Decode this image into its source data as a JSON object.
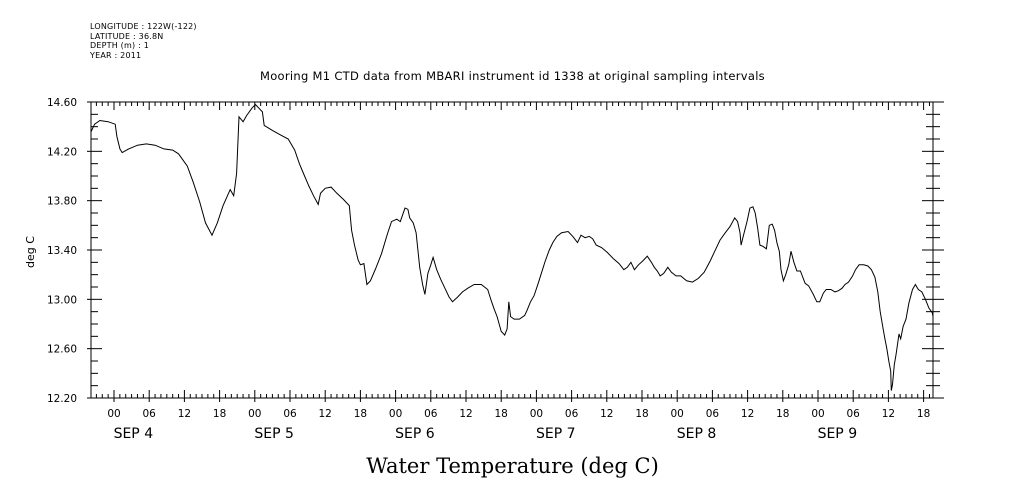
{
  "meta": {
    "longitude": "LONGITUDE : 122W(-122)",
    "latitude": "LATITUDE : 36.8N",
    "depth": "DEPTH (m) : 1",
    "year": "YEAR : 2011"
  },
  "chart_data": {
    "type": "line",
    "title": "Mooring M1 CTD data from MBARI instrument id 1338 at original sampling intervals",
    "footer_title": "Water Temperature (deg C)",
    "ylabel": "deg C",
    "xlabel": "",
    "ylim": [
      12.2,
      14.6
    ],
    "yticks": [
      "12.20",
      "12.60",
      "13.00",
      "13.40",
      "13.80",
      "14.20",
      "14.60"
    ],
    "xlim_hours": [
      -3,
      19.5
    ],
    "x_start_day_hour": [
      "SEP 4",
      "-03"
    ],
    "hour_ticks": [
      "00",
      "06",
      "12",
      "18",
      "00",
      "06",
      "12",
      "18",
      "00",
      "06",
      "12",
      "18",
      "00",
      "06",
      "12",
      "18",
      "00",
      "06",
      "12",
      "18",
      "00",
      "06",
      "12",
      "18"
    ],
    "day_labels": [
      "SEP  4",
      "SEP  5",
      "SEP  6",
      "SEP  7",
      "SEP  8",
      "SEP  9"
    ],
    "grid": false,
    "series": [
      {
        "color": "#000000",
        "x_unit": "hours since SEP 4 00:00",
        "points": [
          [
            -3.9,
            14.36
          ],
          [
            -3.3,
            14.42
          ],
          [
            -2.4,
            14.45
          ],
          [
            -1.0,
            14.44
          ],
          [
            0.2,
            14.42
          ],
          [
            0.5,
            14.32
          ],
          [
            1.0,
            14.22
          ],
          [
            1.4,
            14.19
          ],
          [
            2.5,
            14.22
          ],
          [
            4.0,
            14.25
          ],
          [
            5.5,
            14.26
          ],
          [
            7.0,
            14.25
          ],
          [
            8.5,
            14.22
          ],
          [
            10.0,
            14.21
          ],
          [
            11.0,
            14.18
          ],
          [
            12.5,
            14.08
          ],
          [
            13.5,
            13.95
          ],
          [
            14.6,
            13.79
          ],
          [
            15.6,
            13.62
          ],
          [
            16.7,
            13.52
          ],
          [
            17.6,
            13.62
          ],
          [
            18.6,
            13.76
          ],
          [
            19.8,
            13.89
          ],
          [
            20.4,
            13.84
          ],
          [
            20.9,
            14.02
          ],
          [
            21.3,
            14.48
          ],
          [
            22.0,
            14.44
          ],
          [
            22.6,
            14.49
          ],
          [
            23.5,
            14.55
          ],
          [
            24.1,
            14.58
          ],
          [
            24.7,
            14.55
          ],
          [
            25.3,
            14.52
          ],
          [
            25.6,
            14.41
          ],
          [
            27.0,
            14.37
          ],
          [
            28.5,
            14.33
          ],
          [
            29.7,
            14.3
          ],
          [
            30.8,
            14.21
          ],
          [
            31.6,
            14.1
          ],
          [
            32.3,
            14.02
          ],
          [
            33.2,
            13.92
          ],
          [
            34.0,
            13.84
          ],
          [
            34.8,
            13.77
          ],
          [
            35.2,
            13.86
          ],
          [
            36.0,
            13.9
          ],
          [
            37.0,
            13.91
          ],
          [
            38.0,
            13.86
          ],
          [
            39.1,
            13.81
          ],
          [
            40.1,
            13.76
          ],
          [
            40.5,
            13.56
          ],
          [
            41.0,
            13.44
          ],
          [
            41.6,
            13.32
          ],
          [
            42.0,
            13.28
          ],
          [
            42.6,
            13.29
          ],
          [
            43.1,
            13.12
          ],
          [
            43.7,
            13.15
          ],
          [
            44.6,
            13.25
          ],
          [
            45.6,
            13.37
          ],
          [
            46.6,
            13.53
          ],
          [
            47.3,
            13.63
          ],
          [
            48.2,
            13.65
          ],
          [
            48.8,
            13.63
          ],
          [
            49.6,
            13.74
          ],
          [
            50.1,
            13.73
          ],
          [
            50.4,
            13.66
          ],
          [
            51.0,
            13.62
          ],
          [
            51.5,
            13.54
          ],
          [
            52.1,
            13.26
          ],
          [
            52.6,
            13.12
          ],
          [
            53.0,
            13.04
          ],
          [
            53.5,
            13.21
          ],
          [
            54.0,
            13.28
          ],
          [
            54.4,
            13.34
          ],
          [
            55.0,
            13.24
          ],
          [
            55.7,
            13.16
          ],
          [
            56.4,
            13.09
          ],
          [
            57.1,
            13.02
          ],
          [
            57.7,
            12.98
          ],
          [
            58.6,
            13.02
          ],
          [
            59.4,
            13.06
          ],
          [
            60.3,
            13.09
          ],
          [
            61.4,
            13.12
          ],
          [
            62.6,
            13.12
          ],
          [
            63.7,
            13.08
          ],
          [
            64.3,
            12.99
          ],
          [
            64.8,
            12.92
          ],
          [
            65.3,
            12.86
          ],
          [
            66.0,
            12.74
          ],
          [
            66.6,
            12.71
          ],
          [
            67.0,
            12.76
          ],
          [
            67.3,
            12.98
          ],
          [
            67.6,
            12.86
          ],
          [
            68.2,
            12.84
          ],
          [
            69.1,
            12.84
          ],
          [
            70.0,
            12.87
          ],
          [
            70.4,
            12.91
          ],
          [
            71.0,
            12.98
          ],
          [
            71.6,
            13.03
          ],
          [
            72.3,
            13.13
          ],
          [
            72.9,
            13.22
          ],
          [
            73.5,
            13.31
          ],
          [
            74.2,
            13.4
          ],
          [
            74.8,
            13.46
          ],
          [
            75.5,
            13.51
          ],
          [
            76.3,
            13.54
          ],
          [
            77.4,
            13.55
          ],
          [
            78.2,
            13.51
          ],
          [
            79.0,
            13.46
          ],
          [
            79.6,
            13.52
          ],
          [
            80.3,
            13.5
          ],
          [
            81.0,
            13.51
          ],
          [
            81.6,
            13.49
          ],
          [
            82.2,
            13.44
          ],
          [
            83.1,
            13.42
          ],
          [
            84.1,
            13.38
          ],
          [
            85.1,
            13.33
          ],
          [
            86.1,
            13.29
          ],
          [
            86.9,
            13.24
          ],
          [
            87.5,
            13.26
          ],
          [
            88.1,
            13.3
          ],
          [
            88.7,
            13.24
          ],
          [
            89.4,
            13.28
          ],
          [
            90.1,
            13.31
          ],
          [
            90.9,
            13.35
          ],
          [
            91.6,
            13.3
          ],
          [
            92.1,
            13.26
          ],
          [
            92.6,
            13.23
          ],
          [
            93.1,
            13.19
          ],
          [
            93.7,
            13.21
          ],
          [
            94.4,
            13.26
          ],
          [
            95.0,
            13.22
          ],
          [
            95.8,
            13.19
          ],
          [
            96.6,
            13.19
          ],
          [
            97.6,
            13.15
          ],
          [
            98.6,
            13.14
          ],
          [
            99.6,
            13.17
          ],
          [
            100.6,
            13.22
          ],
          [
            101.6,
            13.31
          ],
          [
            102.6,
            13.41
          ],
          [
            103.3,
            13.48
          ],
          [
            104.2,
            13.54
          ],
          [
            105.0,
            13.59
          ],
          [
            105.8,
            13.66
          ],
          [
            106.3,
            13.63
          ],
          [
            106.7,
            13.54
          ],
          [
            106.9,
            13.44
          ],
          [
            107.3,
            13.52
          ],
          [
            107.9,
            13.63
          ],
          [
            108.4,
            13.74
          ],
          [
            108.9,
            13.75
          ],
          [
            109.3,
            13.7
          ],
          [
            109.7,
            13.58
          ],
          [
            110.1,
            13.44
          ],
          [
            110.6,
            13.43
          ],
          [
            111.2,
            13.41
          ],
          [
            111.7,
            13.6
          ],
          [
            112.2,
            13.61
          ],
          [
            112.6,
            13.56
          ],
          [
            113.0,
            13.46
          ],
          [
            113.4,
            13.39
          ],
          [
            113.7,
            13.24
          ],
          [
            114.1,
            13.15
          ],
          [
            114.5,
            13.2
          ],
          [
            115.0,
            13.28
          ],
          [
            115.4,
            13.39
          ],
          [
            115.9,
            13.3
          ],
          [
            116.4,
            13.23
          ],
          [
            117.0,
            13.23
          ],
          [
            117.8,
            13.13
          ],
          [
            118.4,
            13.11
          ],
          [
            119.2,
            13.04
          ],
          [
            119.8,
            12.98
          ],
          [
            120.3,
            12.98
          ],
          [
            120.9,
            13.05
          ],
          [
            121.4,
            13.08
          ],
          [
            122.2,
            13.08
          ],
          [
            122.9,
            13.06
          ],
          [
            123.5,
            13.07
          ],
          [
            124.1,
            13.09
          ],
          [
            124.6,
            13.12
          ],
          [
            125.2,
            13.14
          ],
          [
            125.9,
            13.19
          ],
          [
            126.4,
            13.24
          ],
          [
            127.0,
            13.28
          ],
          [
            127.8,
            13.28
          ],
          [
            128.5,
            13.27
          ],
          [
            129.1,
            13.24
          ],
          [
            129.7,
            13.18
          ],
          [
            130.2,
            13.06
          ],
          [
            130.6,
            12.9
          ],
          [
            131.0,
            12.79
          ],
          [
            131.4,
            12.68
          ],
          [
            131.7,
            12.61
          ],
          [
            132.1,
            12.49
          ],
          [
            132.4,
            12.42
          ],
          [
            132.5,
            12.26
          ],
          [
            132.7,
            12.31
          ],
          [
            133.0,
            12.47
          ],
          [
            133.3,
            12.55
          ],
          [
            133.8,
            12.72
          ],
          [
            134.1,
            12.68
          ],
          [
            134.5,
            12.78
          ],
          [
            135.0,
            12.84
          ],
          [
            135.5,
            12.97
          ],
          [
            136.1,
            13.08
          ],
          [
            136.6,
            13.12
          ],
          [
            137.1,
            13.08
          ],
          [
            137.7,
            13.06
          ],
          [
            138.3,
            13.0
          ],
          [
            138.9,
            12.93
          ],
          [
            139.5,
            12.89
          ],
          [
            140.1,
            12.86
          ],
          [
            140.6,
            12.77
          ],
          [
            141.0,
            12.71
          ],
          [
            141.4,
            12.77
          ],
          [
            141.8,
            12.91
          ],
          [
            142.1,
            13.1
          ],
          [
            142.3,
            13.2
          ],
          [
            142.7,
            13.28
          ],
          [
            143.3,
            13.29
          ],
          [
            143.9,
            13.22
          ],
          [
            144.4,
            13.11
          ],
          [
            144.8,
            13.19
          ],
          [
            145.2,
            13.32
          ],
          [
            145.5,
            13.5
          ],
          [
            145.9,
            13.46
          ],
          [
            146.2,
            13.3
          ],
          [
            146.7,
            13.43
          ],
          [
            147.1,
            13.55
          ],
          [
            147.5,
            13.78
          ],
          [
            147.9,
            14.0
          ],
          [
            148.3,
            14.13
          ],
          [
            148.7,
            14.21
          ],
          [
            149.2,
            14.23
          ]
        ]
      }
    ]
  }
}
